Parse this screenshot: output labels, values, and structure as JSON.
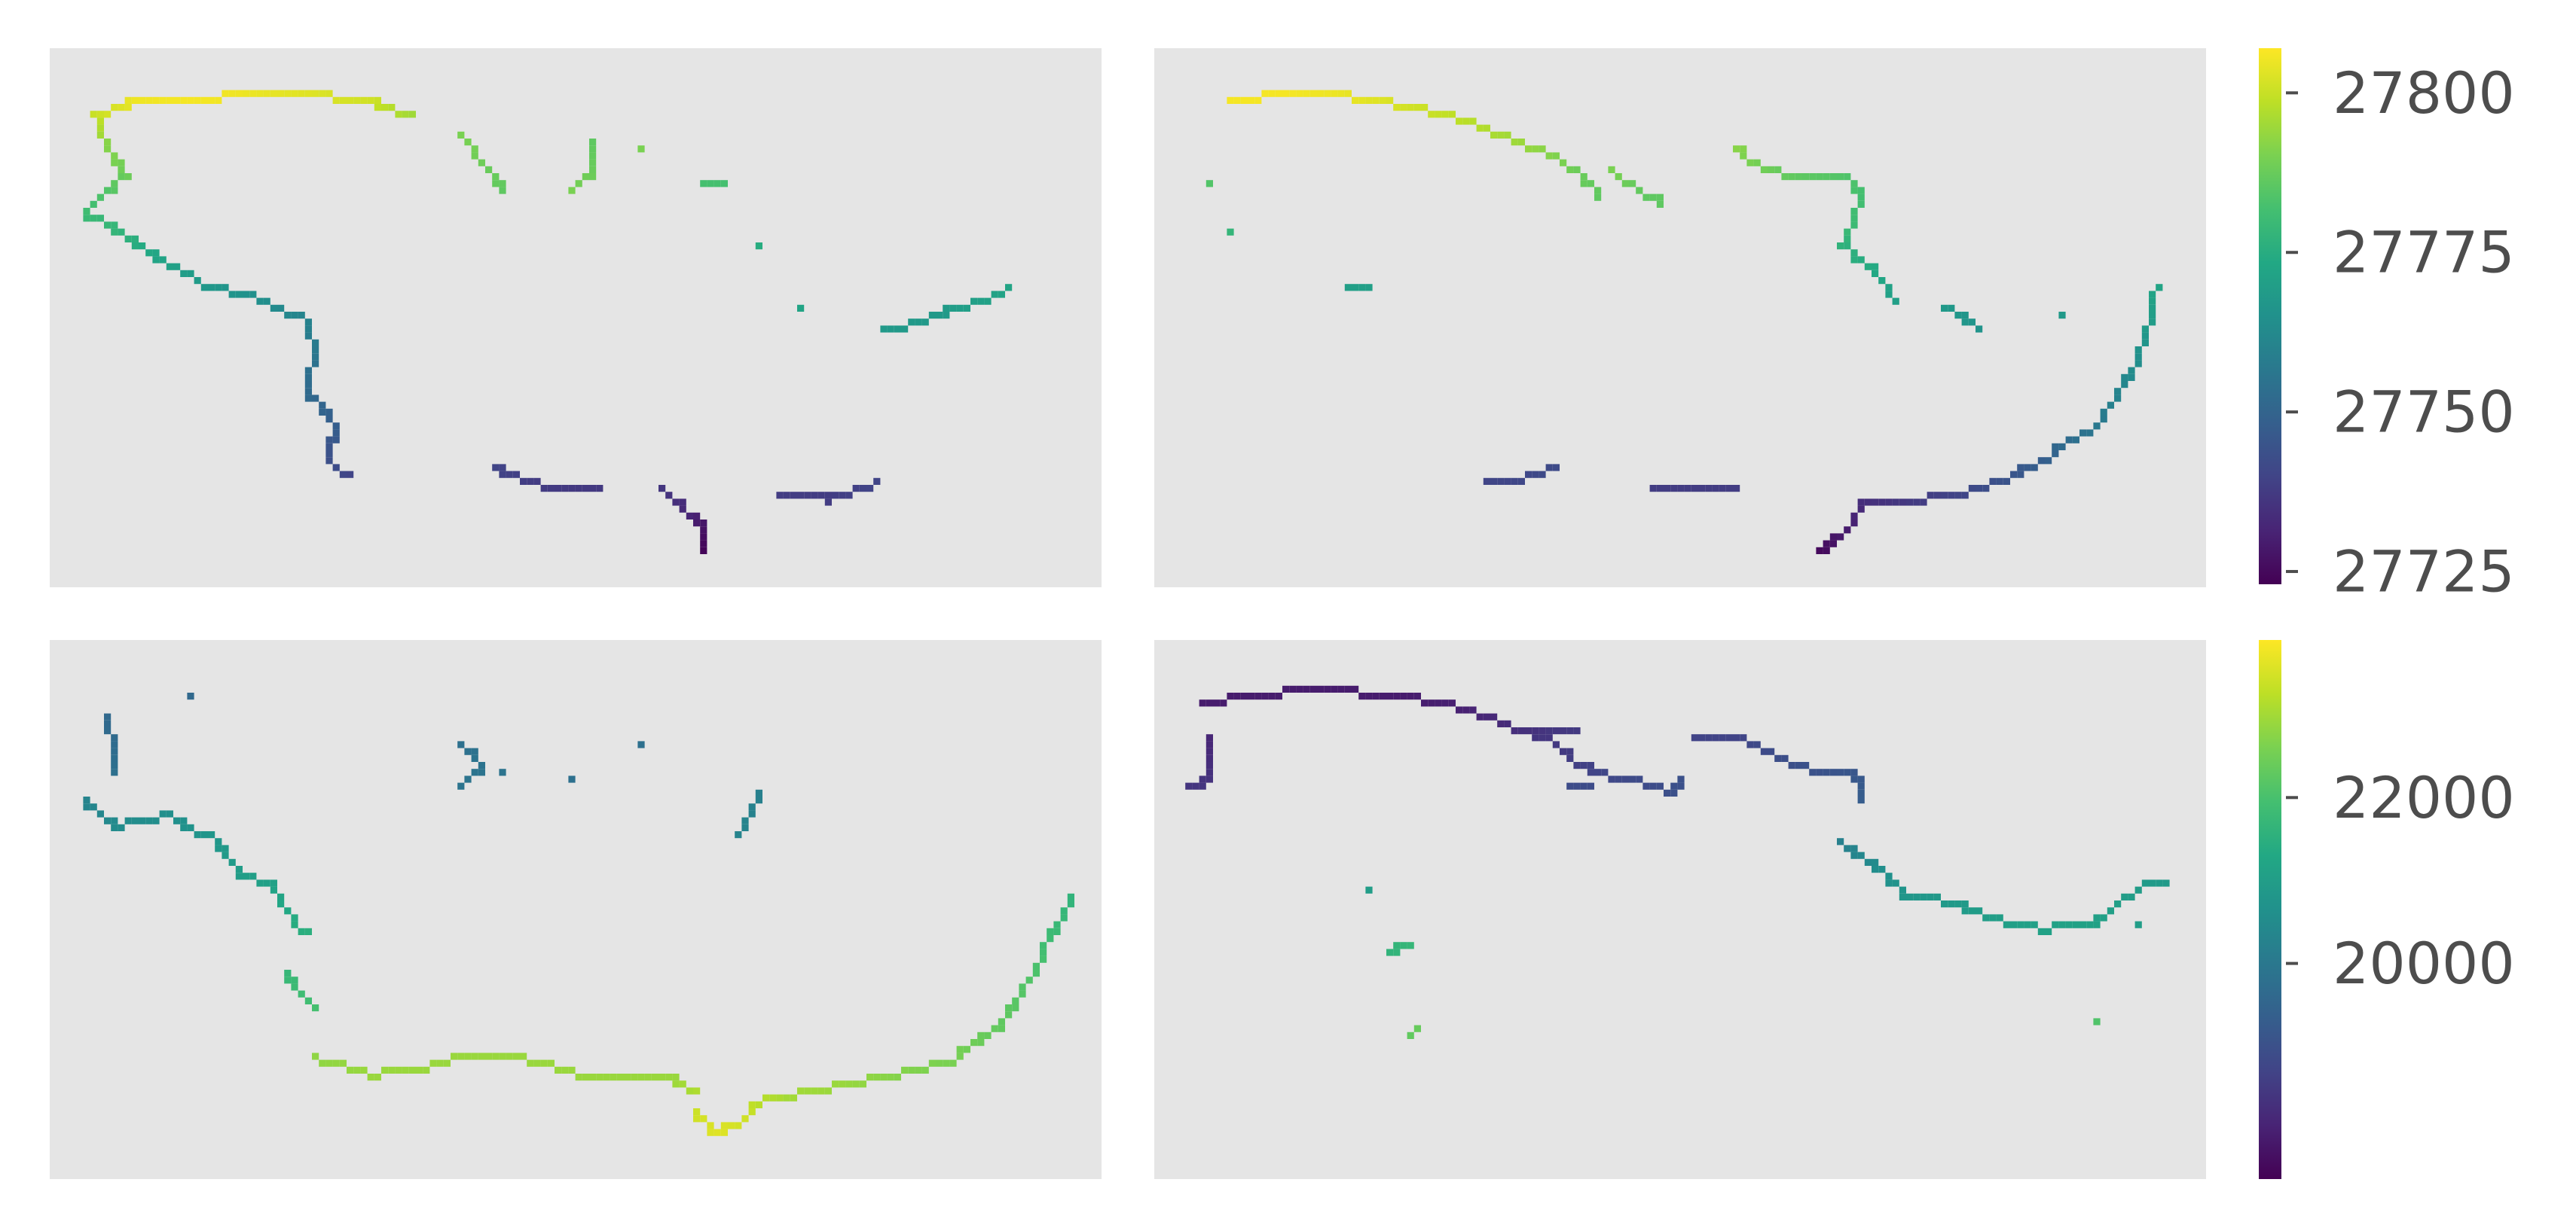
{
  "chart_data": {
    "type": "heatmap",
    "panels": [
      {
        "name": "top-left",
        "colorbar": "top",
        "segments": [
          [
            [
              0.04,
              0.12,
              27800
            ],
            [
              0.08,
              0.09,
              27805
            ],
            [
              0.13,
              0.09,
              27806
            ],
            [
              0.18,
              0.08,
              27805
            ],
            [
              0.24,
              0.08,
              27803
            ],
            [
              0.3,
              0.09,
              27801
            ],
            [
              0.34,
              0.12,
              27795
            ]
          ],
          [
            [
              0.04,
              0.12,
              27800
            ],
            [
              0.05,
              0.17,
              27792
            ],
            [
              0.07,
              0.23,
              27788
            ],
            [
              0.05,
              0.26,
              27784
            ],
            [
              0.03,
              0.3,
              27780
            ]
          ],
          [
            [
              0.03,
              0.3,
              27780
            ],
            [
              0.06,
              0.33,
              27778
            ],
            [
              0.1,
              0.38,
              27772
            ],
            [
              0.14,
              0.43,
              27768
            ],
            [
              0.2,
              0.46,
              27764
            ],
            [
              0.24,
              0.5,
              27760
            ],
            [
              0.25,
              0.56,
              27756
            ],
            [
              0.24,
              0.63,
              27752
            ],
            [
              0.27,
              0.69,
              27748
            ],
            [
              0.26,
              0.75,
              27744
            ],
            [
              0.28,
              0.79,
              27740
            ]
          ],
          [
            [
              0.39,
              0.16,
              27790
            ],
            [
              0.41,
              0.21,
              27788
            ],
            [
              0.43,
              0.26,
              27786
            ]
          ],
          [
            [
              0.49,
              0.26,
              27790
            ],
            [
              0.51,
              0.23,
              27788
            ],
            [
              0.51,
              0.17,
              27786
            ]
          ],
          [
            [
              0.56,
              0.18,
              27790
            ]
          ],
          [
            [
              0.62,
              0.24,
              27782
            ],
            [
              0.64,
              0.24,
              27782
            ]
          ],
          [
            [
              0.67,
              0.36,
              27775
            ]
          ],
          [
            [
              0.71,
              0.47,
              27772
            ]
          ],
          [
            [
              0.79,
              0.52,
              27768
            ],
            [
              0.84,
              0.49,
              27768
            ],
            [
              0.87,
              0.47,
              27770
            ],
            [
              0.91,
              0.44,
              27772
            ]
          ],
          [
            [
              0.42,
              0.77,
              27740
            ],
            [
              0.45,
              0.8,
              27738
            ],
            [
              0.49,
              0.81,
              27737
            ],
            [
              0.52,
              0.81,
              27737
            ]
          ],
          [
            [
              0.58,
              0.81,
              27736
            ],
            [
              0.6,
              0.85,
              27733
            ],
            [
              0.62,
              0.88,
              27728
            ],
            [
              0.62,
              0.93,
              27724
            ]
          ],
          [
            [
              0.69,
              0.82,
              27738
            ],
            [
              0.74,
              0.83,
              27738
            ],
            [
              0.78,
              0.8,
              27740
            ]
          ]
        ]
      },
      {
        "name": "top-right",
        "colorbar": "top",
        "segments": [
          [
            [
              0.07,
              0.09,
              27806
            ],
            [
              0.12,
              0.08,
              27806
            ],
            [
              0.16,
              0.08,
              27805
            ],
            [
              0.21,
              0.09,
              27803
            ],
            [
              0.26,
              0.11,
              27800
            ],
            [
              0.31,
              0.14,
              27797
            ],
            [
              0.36,
              0.18,
              27793
            ],
            [
              0.4,
              0.22,
              27788
            ],
            [
              0.42,
              0.27,
              27786
            ]
          ],
          [
            [
              0.43,
              0.22,
              27790
            ],
            [
              0.46,
              0.26,
              27786
            ],
            [
              0.48,
              0.28,
              27786
            ]
          ],
          [
            [
              0.05,
              0.25,
              27784
            ]
          ],
          [
            [
              0.07,
              0.33,
              27778
            ]
          ],
          [
            [
              0.18,
              0.44,
              27770
            ],
            [
              0.2,
              0.44,
              27770
            ]
          ],
          [
            [
              0.55,
              0.18,
              27792
            ],
            [
              0.58,
              0.22,
              27788
            ],
            [
              0.61,
              0.23,
              27786
            ],
            [
              0.65,
              0.23,
              27784
            ],
            [
              0.67,
              0.26,
              27782
            ]
          ],
          [
            [
              0.67,
              0.26,
              27782
            ],
            [
              0.66,
              0.32,
              27780
            ],
            [
              0.65,
              0.36,
              27777
            ],
            [
              0.68,
              0.4,
              27774
            ],
            [
              0.7,
              0.46,
              27770
            ]
          ],
          [
            [
              0.75,
              0.47,
              27768
            ],
            [
              0.78,
              0.51,
              27766
            ]
          ],
          [
            [
              0.86,
              0.49,
              27768
            ]
          ],
          [
            [
              0.95,
              0.44,
              27772
            ],
            [
              0.94,
              0.52,
              27768
            ],
            [
              0.93,
              0.58,
              27764
            ],
            [
              0.91,
              0.64,
              27760
            ],
            [
              0.89,
              0.7,
              27756
            ],
            [
              0.86,
              0.73,
              27752
            ],
            [
              0.84,
              0.76,
              27748
            ]
          ],
          [
            [
              0.84,
              0.76,
              27748
            ],
            [
              0.8,
              0.8,
              27744
            ],
            [
              0.76,
              0.82,
              27740
            ],
            [
              0.73,
              0.83,
              27738
            ],
            [
              0.7,
              0.84,
              27736
            ],
            [
              0.67,
              0.84,
              27734
            ]
          ],
          [
            [
              0.67,
              0.84,
              27734
            ],
            [
              0.66,
              0.88,
              27730
            ],
            [
              0.64,
              0.91,
              27727
            ],
            [
              0.63,
              0.93,
              27725
            ]
          ],
          [
            [
              0.31,
              0.8,
              27740
            ],
            [
              0.35,
              0.79,
              27741
            ],
            [
              0.38,
              0.77,
              27742
            ]
          ],
          [
            [
              0.47,
              0.81,
              27738
            ],
            [
              0.51,
              0.81,
              27738
            ],
            [
              0.55,
              0.81,
              27738
            ]
          ]
        ]
      },
      {
        "name": "bottom-left",
        "colorbar": "bottom",
        "segments": [
          [
            [
              0.03,
              0.29,
              20300
            ],
            [
              0.06,
              0.34,
              20500
            ],
            [
              0.11,
              0.32,
              20600
            ],
            [
              0.15,
              0.36,
              20800
            ],
            [
              0.18,
              0.43,
              21000
            ],
            [
              0.21,
              0.45,
              21100
            ],
            [
              0.22,
              0.49,
              21300
            ],
            [
              0.24,
              0.54,
              21500
            ]
          ],
          [
            [
              0.22,
              0.61,
              21700
            ],
            [
              0.24,
              0.66,
              21900
            ],
            [
              0.25,
              0.68,
              22000
            ]
          ],
          [
            [
              0.25,
              0.77,
              22800
            ],
            [
              0.3,
              0.8,
              22900
            ],
            [
              0.35,
              0.79,
              22900
            ],
            [
              0.4,
              0.76,
              22900
            ],
            [
              0.45,
              0.77,
              22900
            ],
            [
              0.5,
              0.8,
              22900
            ],
            [
              0.55,
              0.81,
              22900
            ],
            [
              0.59,
              0.81,
              22900
            ],
            [
              0.61,
              0.83,
              23100
            ]
          ],
          [
            [
              0.61,
              0.87,
              23400
            ],
            [
              0.63,
              0.91,
              23600
            ],
            [
              0.66,
              0.88,
              23400
            ],
            [
              0.67,
              0.85,
              23200
            ],
            [
              0.7,
              0.84,
              23000
            ]
          ],
          [
            [
              0.7,
              0.84,
              23000
            ],
            [
              0.75,
              0.82,
              22900
            ],
            [
              0.8,
              0.8,
              22700
            ],
            [
              0.85,
              0.78,
              22600
            ],
            [
              0.9,
              0.71,
              22300
            ],
            [
              0.93,
              0.62,
              22100
            ],
            [
              0.95,
              0.54,
              21800
            ],
            [
              0.97,
              0.47,
              21600
            ]
          ],
          [
            [
              0.05,
              0.14,
              19600
            ],
            [
              0.06,
              0.19,
              19700
            ],
            [
              0.06,
              0.24,
              19800
            ]
          ],
          [
            [
              0.13,
              0.1,
              19600
            ]
          ],
          [
            [
              0.39,
              0.19,
              19800
            ],
            [
              0.41,
              0.23,
              19900
            ],
            [
              0.39,
              0.26,
              19900
            ]
          ],
          [
            [
              0.43,
              0.24,
              19900
            ]
          ],
          [
            [
              0.49,
              0.25,
              19800
            ]
          ],
          [
            [
              0.56,
              0.19,
              19800
            ]
          ],
          [
            [
              0.67,
              0.28,
              20200
            ],
            [
              0.66,
              0.33,
              20300
            ],
            [
              0.65,
              0.36,
              20300
            ]
          ]
        ]
      },
      {
        "name": "bottom-right",
        "colorbar": "bottom",
        "segments": [
          [
            [
              0.04,
              0.11,
              17900
            ],
            [
              0.08,
              0.1,
              17900
            ],
            [
              0.12,
              0.09,
              17900
            ],
            [
              0.18,
              0.09,
              17900
            ],
            [
              0.24,
              0.1,
              17900
            ],
            [
              0.29,
              0.12,
              18000
            ],
            [
              0.33,
              0.15,
              18200
            ],
            [
              0.37,
              0.17,
              18400
            ],
            [
              0.4,
              0.22,
              18600
            ],
            [
              0.43,
              0.25,
              18800
            ]
          ],
          [
            [
              0.36,
              0.17,
              18400
            ],
            [
              0.4,
              0.16,
              18500
            ]
          ],
          [
            [
              0.05,
              0.18,
              18100
            ],
            [
              0.05,
              0.24,
              18300
            ],
            [
              0.04,
              0.26,
              18400
            ],
            [
              0.03,
              0.26,
              18400
            ]
          ],
          [
            [
              0.39,
              0.27,
              18900
            ],
            [
              0.41,
              0.27,
              18900
            ]
          ],
          [
            [
              0.43,
              0.25,
              18800
            ],
            [
              0.47,
              0.26,
              18900
            ],
            [
              0.49,
              0.28,
              19000
            ],
            [
              0.5,
              0.25,
              19000
            ]
          ],
          [
            [
              0.51,
              0.17,
              18700
            ],
            [
              0.55,
              0.17,
              18700
            ],
            [
              0.58,
              0.2,
              18900
            ],
            [
              0.61,
              0.23,
              19000
            ],
            [
              0.65,
              0.24,
              19100
            ],
            [
              0.67,
              0.25,
              19200
            ],
            [
              0.67,
              0.29,
              19300
            ]
          ],
          [
            [
              0.65,
              0.37,
              20200
            ],
            [
              0.69,
              0.42,
              20600
            ],
            [
              0.71,
              0.47,
              20800
            ],
            [
              0.76,
              0.48,
              20900
            ],
            [
              0.79,
              0.51,
              21000
            ],
            [
              0.84,
              0.53,
              21100
            ],
            [
              0.89,
              0.52,
              21100
            ],
            [
              0.92,
              0.47,
              21000
            ],
            [
              0.95,
              0.44,
              20900
            ],
            [
              0.96,
              0.45,
              20900
            ]
          ],
          [
            [
              0.2,
              0.46,
              21000
            ]
          ],
          [
            [
              0.22,
              0.57,
              21600
            ],
            [
              0.24,
              0.56,
              21700
            ]
          ],
          [
            [
              0.24,
              0.73,
              22300
            ],
            [
              0.25,
              0.71,
              22400
            ]
          ],
          [
            [
              0.93,
              0.52,
              21000
            ]
          ],
          [
            [
              0.89,
              0.7,
              22100
            ]
          ]
        ]
      }
    ],
    "colorbars": [
      {
        "name": "top",
        "colormap": "viridis",
        "range": [
          27723,
          27807
        ],
        "ticks": [
          "27725",
          "27750",
          "27775",
          "27800"
        ],
        "tick_values": [
          27725,
          27750,
          27775,
          27800
        ]
      },
      {
        "name": "bottom",
        "colormap": "viridis",
        "range": [
          17400,
          23900
        ],
        "ticks": [
          "20000",
          "22000"
        ],
        "tick_values": [
          20000,
          22000
        ]
      }
    ],
    "axes_background": "#e5e5e5",
    "grid": false,
    "xlabel": "",
    "ylabel": ""
  }
}
